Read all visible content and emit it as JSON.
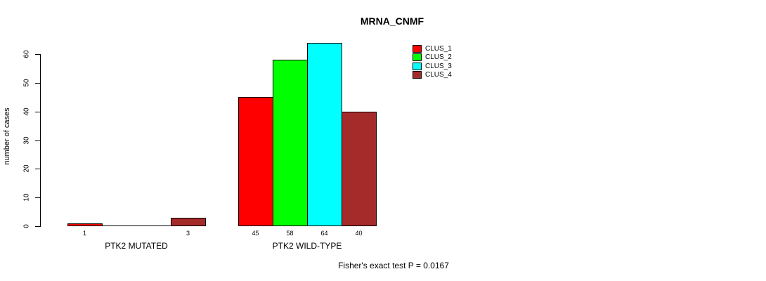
{
  "chart_data": {
    "type": "bar",
    "title": "MRNA_CNMF",
    "ylabel": "number of cases",
    "xlabel": "",
    "ylim": [
      0,
      64
    ],
    "yticks": [
      0,
      10,
      20,
      30,
      40,
      50,
      60
    ],
    "grid": false,
    "legend_position": "top-right",
    "categories": [
      "PTK2 MUTATED",
      "PTK2 WILD-TYPE"
    ],
    "series": [
      {
        "name": "CLUS_1",
        "color": "#FF0000",
        "values": [
          1,
          45
        ]
      },
      {
        "name": "CLUS_2",
        "color": "#00FF00",
        "values": [
          0,
          58
        ]
      },
      {
        "name": "CLUS_3",
        "color": "#00FFFF",
        "values": [
          0,
          64
        ]
      },
      {
        "name": "CLUS_4",
        "color": "#A52A2A",
        "values": [
          3,
          40
        ]
      }
    ],
    "value_label_rule": "bar values printed under each bar; zero values unlabeled",
    "annotation": "Fisher's exact test P = 0.0167"
  },
  "colors": {
    "background": "#FFFFFF",
    "axis": "#000000",
    "text": "#000000",
    "bar_border": "#000000"
  }
}
